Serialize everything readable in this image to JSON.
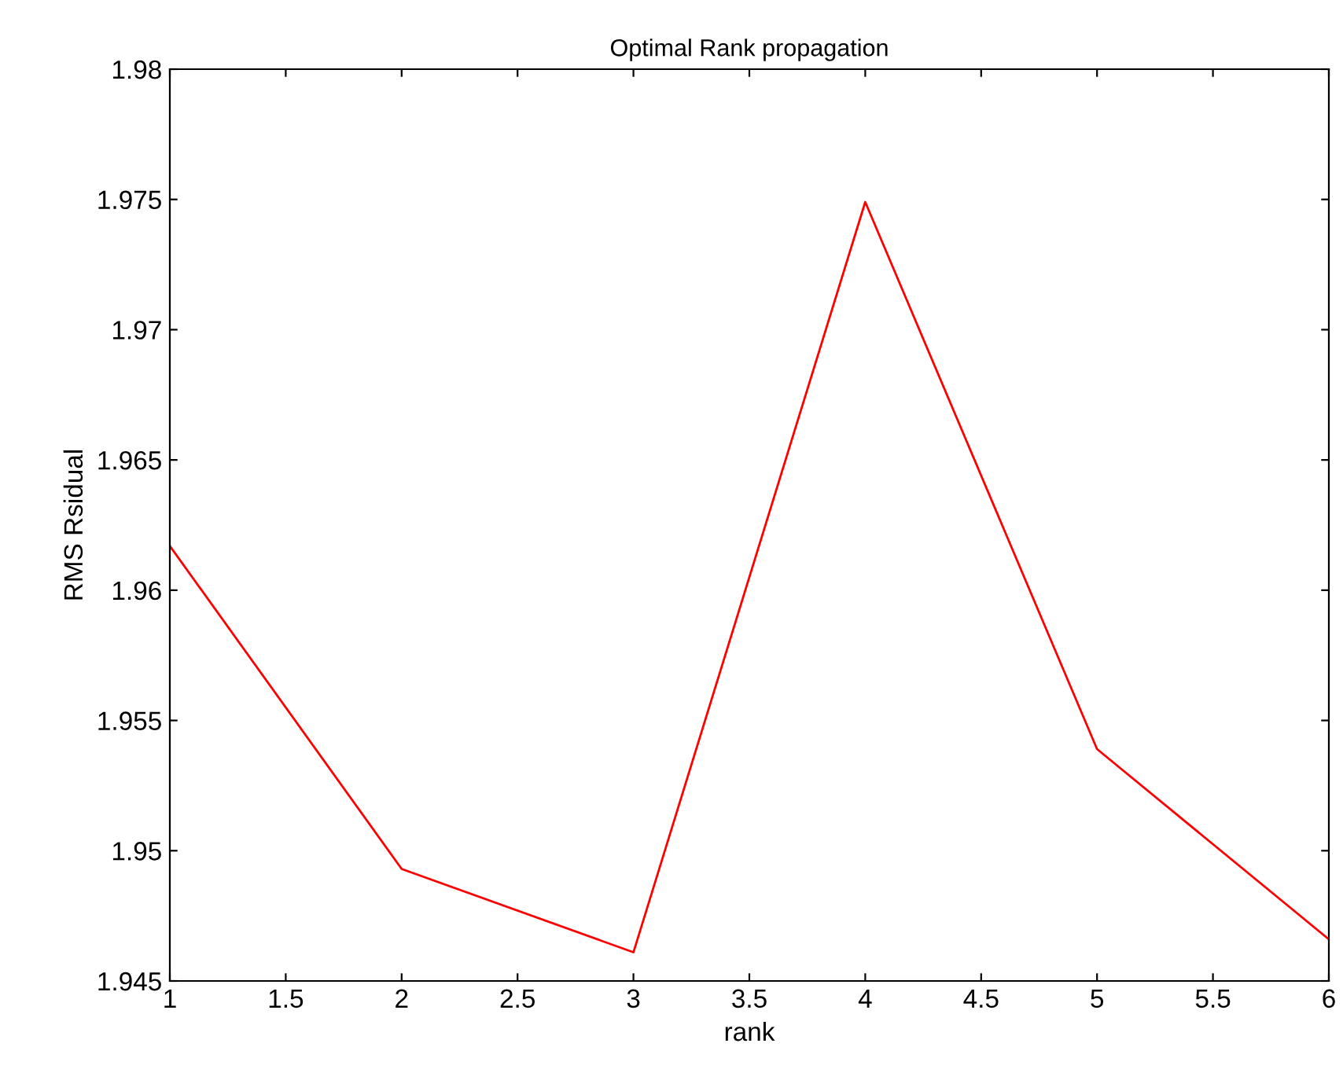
{
  "chart_data": {
    "type": "line",
    "title": "Optimal Rank propagation",
    "xlabel": "rank",
    "ylabel": "RMS Rsidual",
    "x": [
      1,
      2,
      3,
      4,
      5,
      6
    ],
    "series": [
      {
        "color": "#ff0000",
        "values": [
          1.9617,
          1.9493,
          1.9461,
          1.9749,
          1.9539,
          1.9466
        ]
      }
    ],
    "xlim": [
      1,
      6
    ],
    "xticks": [
      1,
      1.5,
      2,
      2.5,
      3,
      3.5,
      4,
      4.5,
      5,
      5.5,
      6
    ],
    "ylim": [
      1.945,
      1.98
    ],
    "yticks": [
      1.945,
      1.95,
      1.955,
      1.96,
      1.965,
      1.97,
      1.975,
      1.98
    ],
    "grid": false,
    "legend": false
  }
}
